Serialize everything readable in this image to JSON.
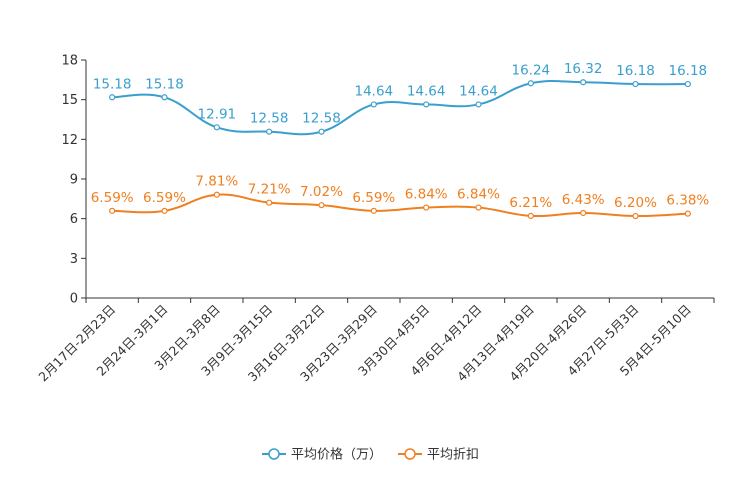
{
  "chart_data": {
    "type": "line",
    "title": "",
    "xlabel": "",
    "ylabel": "",
    "ylim": [
      0,
      18
    ],
    "yticks": [
      0,
      3,
      6,
      9,
      12,
      15,
      18
    ],
    "categories": [
      "2月17日-2月23日",
      "2月24日-3月1日",
      "3月2日-3月8日",
      "3月9日-3月15日",
      "3月16日-3月22日",
      "3月23日-3月29日",
      "3月30日-4月5日",
      "4月6日-4月12日",
      "4月13日-4月19日",
      "4月20日-4月26日",
      "4月27日-5月3日",
      "5月4日-5月10日"
    ],
    "series": [
      {
        "name": "平均价格（万）",
        "color": "#3a9fcf",
        "values": [
          15.18,
          15.18,
          12.91,
          12.58,
          12.58,
          14.64,
          14.64,
          14.64,
          16.24,
          16.32,
          16.18,
          16.18
        ],
        "labels": [
          "15.18",
          "15.18",
          "12.91",
          "12.58",
          "12.58",
          "14.64",
          "14.64",
          "14.64",
          "16.24",
          "16.32",
          "16.18",
          "16.18"
        ]
      },
      {
        "name": "平均折扣",
        "color": "#f07f1f",
        "values": [
          6.59,
          6.59,
          7.81,
          7.21,
          7.02,
          6.59,
          6.84,
          6.84,
          6.21,
          6.43,
          6.2,
          6.38
        ],
        "labels": [
          "6.59%",
          "6.59%",
          "7.81%",
          "7.21%",
          "7.02%",
          "6.59%",
          "6.84%",
          "6.84%",
          "6.21%",
          "6.43%",
          "6.20%",
          "6.38%"
        ]
      }
    ],
    "grid": false,
    "legend_position": "bottom-center"
  }
}
